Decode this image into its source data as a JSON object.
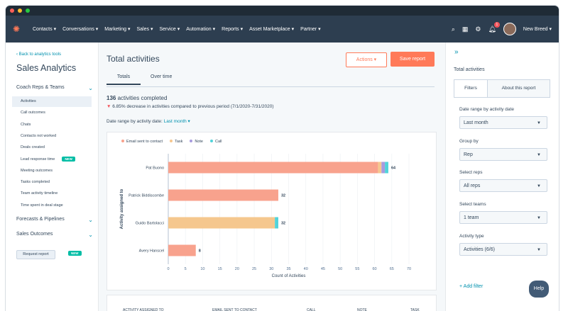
{
  "colors": {
    "accent": "#ff7a59",
    "link": "#0091ae",
    "nav": "#2d3e50",
    "email": "#f8a28d",
    "task": "#f5c78e",
    "note": "#a79bde",
    "call": "#51d3d9"
  },
  "nav": {
    "items": [
      "Contacts ▾",
      "Conversations ▾",
      "Marketing ▾",
      "Sales ▾",
      "Service ▾",
      "Automation ▾",
      "Reports ▾",
      "Asset Marketplace ▾",
      "Partner ▾"
    ],
    "user": "New Breed ▾",
    "notif_count": "1"
  },
  "sidebar": {
    "back": "‹ Back to analytics tools",
    "title": "Sales Analytics",
    "section1": "Coach Reps & Teams",
    "items": [
      "Activities",
      "Call outcomes",
      "Chats",
      "Contacts not worked",
      "Deals created",
      "Lead response time",
      "Meeting outcomes",
      "Tasks completed",
      "Team activity timeline",
      "Time spent in deal stage"
    ],
    "new_label": "NEW",
    "section2": "Forecasts & Pipelines",
    "section3": "Sales Outcomes",
    "request": "Request report"
  },
  "main": {
    "title": "Total activities",
    "actions": "Actions ▾",
    "save": "Save report",
    "tabs": [
      "Totals",
      "Over time"
    ],
    "stat_num": "136",
    "stat_text": " activities completed",
    "change": "6.85% decrease in activities compared to previous period (7/1/2020-7/31/2020)",
    "range_label": "Date range by activity date: ",
    "range_value": "Last month ▾",
    "table_headers": [
      "ACTIVITY ASSIGNED TO",
      "EMAIL SENT TO CONTACT",
      "CALL",
      "NOTE",
      "TASK"
    ]
  },
  "chart_data": {
    "type": "bar",
    "orientation": "horizontal",
    "stacked": true,
    "categories": [
      "Pat Buono",
      "Patrick Biddiscombe",
      "Guido Bartolacci",
      "Avery Hanscel"
    ],
    "series": [
      {
        "name": "Email sent to contact",
        "values": [
          61,
          32,
          31,
          8
        ]
      },
      {
        "name": "Task",
        "values": [
          1,
          0,
          0,
          0
        ]
      },
      {
        "name": "Note",
        "values": [
          1,
          0,
          0,
          0
        ]
      },
      {
        "name": "Call",
        "values": [
          1,
          0,
          1,
          0
        ]
      }
    ],
    "totals": [
      64,
      32,
      32,
      8
    ],
    "xlabel": "Count of Activities",
    "ylabel": "Activity assigned to",
    "xlim": [
      0,
      70
    ],
    "xticks": [
      0,
      5,
      10,
      15,
      20,
      25,
      30,
      35,
      40,
      45,
      50,
      55,
      60,
      65,
      70
    ],
    "legend_position": "top-left",
    "grid": true
  },
  "right": {
    "title": "Total activities",
    "tab_filters": "Filters",
    "tab_about": "About this report",
    "filters": [
      {
        "label": "Date range by activity date",
        "value": "Last month"
      },
      {
        "label": "Group by",
        "value": "Rep"
      },
      {
        "label": "Select reps",
        "value": "All reps"
      },
      {
        "label": "Select teams",
        "value": "1 team"
      },
      {
        "label": "Activity type",
        "value": "Activities (6/6)"
      }
    ],
    "add_filter": "+ Add filter"
  },
  "help": "Help"
}
